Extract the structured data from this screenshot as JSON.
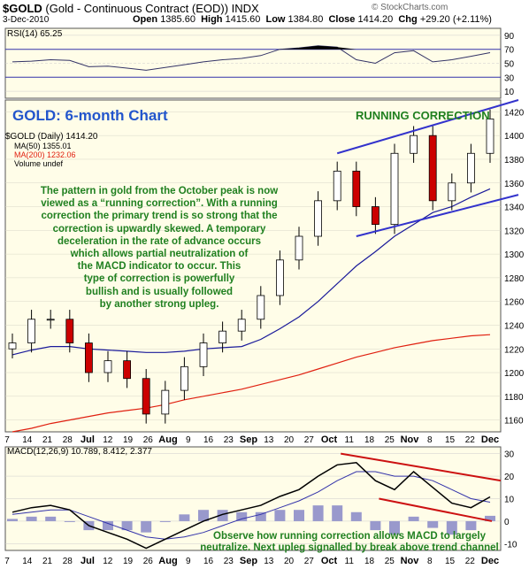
{
  "header": {
    "symbol": "$GOLD",
    "name": "(Gold - Continuous Contract (EOD))",
    "exchange": "INDX",
    "date": "3-Dec-2010",
    "open_label": "Open",
    "open": "1385.60",
    "high_label": "High",
    "high": "1415.60",
    "low_label": "Low",
    "low": "1384.80",
    "close_label": "Close",
    "close": "1414.20",
    "chg_label": "Chg",
    "chg": "+29.20 (+2.11%)",
    "watermark": "© StockCharts.com"
  },
  "rsi_panel": {
    "label": "RSI(14) 65.25",
    "ticks": [
      "90",
      "70",
      "50",
      "30",
      "10"
    ]
  },
  "price_panel": {
    "title": "GOLD: 6-month Chart",
    "pattern_label": "RUNNING CORRECTION",
    "legend": [
      "$GOLD (Daily) 1414.20",
      "MA(50) 1355.01",
      "MA(200) 1232.06",
      "Volume undef"
    ],
    "commentary": [
      "The pattern in gold from the October peak is now",
      "viewed as a “running correction”. With a running",
      "correction the primary trend is so strong that the",
      "correction is upwardly skewed. A temporary",
      "deceleration in the rate of advance occurs",
      "which allows partial neutralization of",
      "the MACD indicator to occur. This",
      "type of correction is powerfully",
      "bullish and is usually followed",
      "by another strong upleg."
    ],
    "ticks": [
      "1420",
      "1400",
      "1380",
      "1360",
      "1340",
      "1320",
      "1300",
      "1280",
      "1260",
      "1240",
      "1220",
      "1200",
      "1180",
      "1160"
    ]
  },
  "macd_panel": {
    "label": "MACD(12,26,9) 10.789, 8.412, 2.377",
    "ticks": [
      "30",
      "20",
      "10",
      "0",
      "-10"
    ],
    "note_line1": "Observe how running correction allows MACD to largely",
    "note_line2": "neutralize. Next upleg signalled by break above trend channel"
  },
  "x_labels": [
    "7",
    "14",
    "21",
    "28",
    "Jul",
    "12",
    "19",
    "26",
    "Aug",
    "9",
    "16",
    "23",
    "Sep",
    "13",
    "20",
    "27",
    "Oct",
    "11",
    "18",
    "25",
    "Nov",
    "8",
    "15",
    "22",
    "Dec"
  ],
  "colors": {
    "background": "#fffde8",
    "up_candle": "#ffffff",
    "down_candle": "#cc0000",
    "ma50": "#1a1a9a",
    "ma200": "#e02010",
    "annotation": "#208020",
    "title_blue": "#2255cc",
    "trendline_blue": "#3333cc",
    "trendline_red": "#cc1111",
    "histogram": "#9999cc"
  },
  "chart_data": {
    "type": "candlestick",
    "x": [
      "Jun 7",
      "Jun 14",
      "Jun 21",
      "Jun 28",
      "Jul 5",
      "Jul 12",
      "Jul 19",
      "Jul 26",
      "Aug 2",
      "Aug 9",
      "Aug 16",
      "Aug 23",
      "Sep 6",
      "Sep 13",
      "Sep 20",
      "Sep 27",
      "Oct 4",
      "Oct 11",
      "Oct 18",
      "Oct 25",
      "Nov 1",
      "Nov 8",
      "Nov 15",
      "Nov 22",
      "Nov 29",
      "Dec 3"
    ],
    "close": [
      1225,
      1245,
      1245,
      1225,
      1200,
      1210,
      1195,
      1165,
      1185,
      1205,
      1225,
      1235,
      1245,
      1265,
      1295,
      1315,
      1345,
      1370,
      1340,
      1325,
      1385,
      1400,
      1345,
      1360,
      1385,
      1414
    ],
    "ma50": [
      1215,
      1219,
      1222,
      1222,
      1220,
      1219,
      1218,
      1217,
      1217,
      1218,
      1220,
      1221,
      1222,
      1228,
      1237,
      1247,
      1260,
      1275,
      1290,
      1302,
      1315,
      1325,
      1335,
      1340,
      1348,
      1355
    ],
    "ma200": [
      1150,
      1153,
      1157,
      1160,
      1163,
      1166,
      1168,
      1170,
      1173,
      1177,
      1180,
      1183,
      1186,
      1190,
      1194,
      1198,
      1203,
      1208,
      1213,
      1217,
      1221,
      1224,
      1227,
      1229,
      1231,
      1232
    ],
    "rsi": [
      52,
      53,
      55,
      54,
      45,
      46,
      43,
      40,
      44,
      48,
      52,
      55,
      57,
      61,
      70,
      72,
      75,
      73,
      55,
      50,
      65,
      68,
      52,
      55,
      60,
      65.25
    ],
    "macd": [
      4,
      6,
      7,
      5,
      -2,
      -5,
      -8,
      -12,
      -8,
      -4,
      0,
      3,
      5,
      7,
      11,
      14,
      20,
      25,
      26,
      18,
      14,
      22,
      15,
      8,
      6,
      10.789
    ],
    "signal": [
      3,
      4,
      5,
      5,
      2,
      -1,
      -4,
      -7,
      -8,
      -7,
      -5,
      -2,
      1,
      3,
      6,
      9,
      13,
      18,
      22,
      22,
      20,
      20,
      18,
      14,
      10,
      8.412
    ],
    "ylim_price": [
      1150,
      1430
    ],
    "ylim_rsi": [
      0,
      100
    ],
    "ylim_macd": [
      -13,
      33
    ],
    "grid": true
  }
}
